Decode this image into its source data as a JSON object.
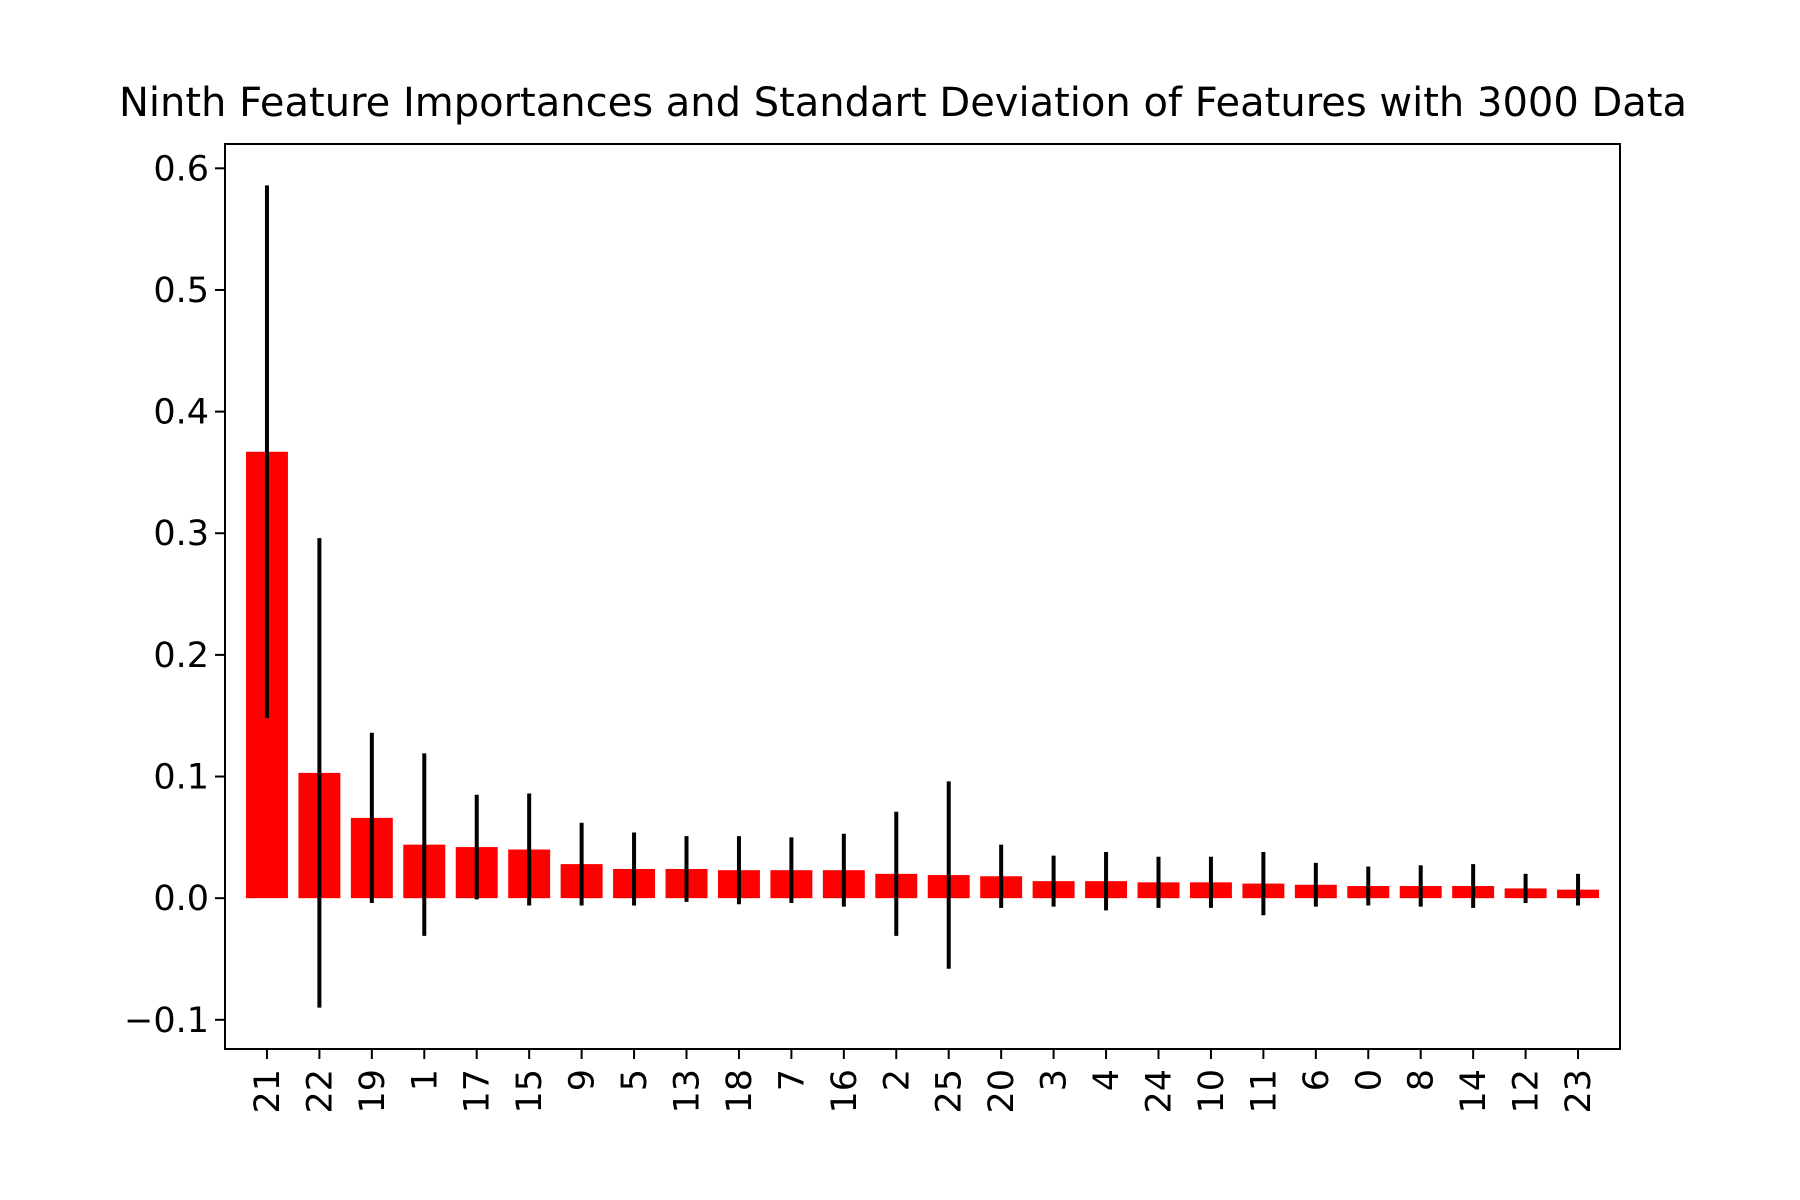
{
  "chart_data": {
    "type": "bar",
    "title": "Ninth Feature Importances and Standart Deviation of Features with 3000 Data",
    "xlabel": "",
    "ylabel": "",
    "ylim": [
      -0.124,
      0.62
    ],
    "yticks": [
      -0.1,
      0.0,
      0.1,
      0.2,
      0.3,
      0.4,
      0.5,
      0.6
    ],
    "ytick_labels": [
      "−0.1",
      "0.0",
      "0.1",
      "0.2",
      "0.3",
      "0.4",
      "0.5",
      "0.6"
    ],
    "categories": [
      "21",
      "22",
      "19",
      "1",
      "17",
      "15",
      "9",
      "5",
      "13",
      "18",
      "7",
      "16",
      "2",
      "25",
      "20",
      "3",
      "4",
      "24",
      "10",
      "11",
      "6",
      "0",
      "8",
      "14",
      "12",
      "23"
    ],
    "values": [
      0.367,
      0.103,
      0.066,
      0.044,
      0.042,
      0.04,
      0.028,
      0.024,
      0.024,
      0.023,
      0.023,
      0.023,
      0.02,
      0.019,
      0.018,
      0.014,
      0.014,
      0.013,
      0.013,
      0.012,
      0.011,
      0.01,
      0.01,
      0.01,
      0.008,
      0.007
    ],
    "errors": [
      0.219,
      0.193,
      0.07,
      0.075,
      0.043,
      0.046,
      0.034,
      0.03,
      0.027,
      0.028,
      0.027,
      0.03,
      0.051,
      0.077,
      0.026,
      0.021,
      0.024,
      0.021,
      0.021,
      0.026,
      0.018,
      0.016,
      0.017,
      0.018,
      0.012,
      0.013
    ],
    "bar_color": "#ff0000",
    "error_color": "#000000",
    "grid": false,
    "legend": "none"
  }
}
